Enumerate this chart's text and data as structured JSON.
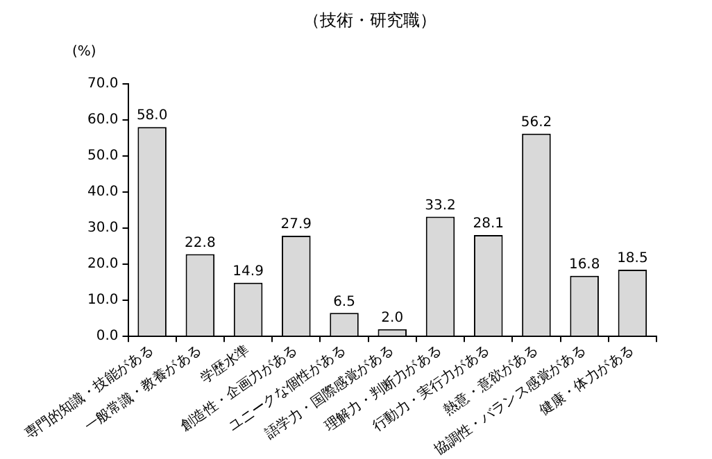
{
  "chart_data": {
    "type": "bar",
    "title": "（技術・研究職）",
    "ylabel": "(%)",
    "categories": [
      "専門的知識・技能がある",
      "一般常識・教養がある",
      "学歴水準",
      "創造性・企画力がある",
      "ユニークな個性がある",
      "語学力・国際感覚がある",
      "理解力・判断力がある",
      "行動力・実行力がある",
      "熱意・意欲がある",
      "協調性・バランス感覚がある",
      "健康・体力がある"
    ],
    "values": [
      58.0,
      22.8,
      14.9,
      27.9,
      6.5,
      2.0,
      33.2,
      28.1,
      56.2,
      16.8,
      18.5
    ],
    "value_labels": [
      "58.0",
      "22.8",
      "14.9",
      "27.9",
      "6.5",
      "2.0",
      "33.2",
      "28.1",
      "56.2",
      "16.8",
      "18.5"
    ],
    "color": "#d9d9d9",
    "ylim": [
      0,
      70
    ],
    "yticks": [
      {
        "value": 0,
        "label": "0.0"
      },
      {
        "value": 10,
        "label": "10.0"
      },
      {
        "value": 20,
        "label": "20.0"
      },
      {
        "value": 30,
        "label": "30.0"
      },
      {
        "value": 40,
        "label": "40.0"
      },
      {
        "value": 50,
        "label": "50.0"
      },
      {
        "value": 60,
        "label": "60.0"
      },
      {
        "value": 70,
        "label": "70.0"
      }
    ],
    "grid": false,
    "legend": false
  }
}
